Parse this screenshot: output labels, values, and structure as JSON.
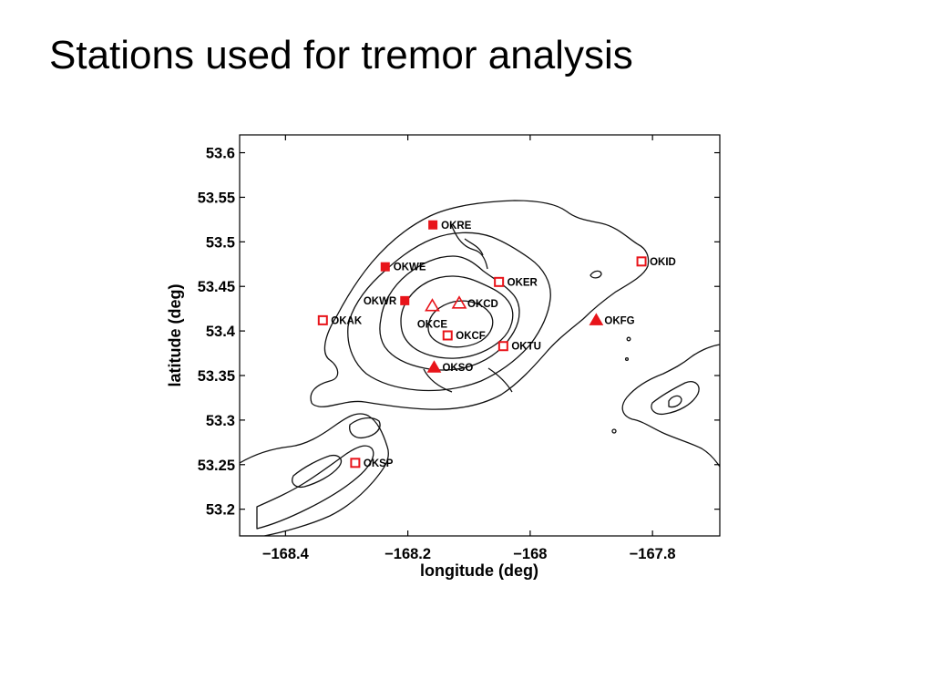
{
  "slide": {
    "title": "Stations used for tremor analysis"
  },
  "map": {
    "xlabel": "longitude (deg)",
    "ylabel": "latitude (deg)",
    "xlim": [
      -168.475,
      -167.69
    ],
    "ylim": [
      53.17,
      53.62
    ],
    "x_ticks": [
      {
        "value": -168.4,
        "label": "−168.4"
      },
      {
        "value": -168.2,
        "label": "−168.2"
      },
      {
        "value": -168.0,
        "label": "−168"
      },
      {
        "value": -167.8,
        "label": "−167.8"
      }
    ],
    "y_ticks": [
      {
        "value": 53.2,
        "label": "53.2"
      },
      {
        "value": 53.25,
        "label": "53.25"
      },
      {
        "value": 53.3,
        "label": "53.3"
      },
      {
        "value": 53.35,
        "label": "53.35"
      },
      {
        "value": 53.4,
        "label": "53.4"
      },
      {
        "value": 53.45,
        "label": "53.45"
      },
      {
        "value": 53.5,
        "label": "53.5"
      },
      {
        "value": 53.55,
        "label": "53.55"
      },
      {
        "value": 53.6,
        "label": "53.6"
      }
    ],
    "marker_color": "#e8141a",
    "stations": [
      {
        "name": "OKRE",
        "lon": -168.159,
        "lat": 53.519,
        "marker": "filled-square",
        "label_side": "right"
      },
      {
        "name": "OKWE",
        "lon": -168.237,
        "lat": 53.472,
        "marker": "filled-square",
        "label_side": "right"
      },
      {
        "name": "OKWR",
        "lon": -168.205,
        "lat": 53.434,
        "marker": "filled-square",
        "label_side": "left"
      },
      {
        "name": "OKCE",
        "lon": -168.16,
        "lat": 53.428,
        "marker": "open-triangle",
        "label_side": "below"
      },
      {
        "name": "OKCD",
        "lon": -168.116,
        "lat": 53.431,
        "marker": "open-triangle",
        "label_side": "right"
      },
      {
        "name": "OKER",
        "lon": -168.051,
        "lat": 53.455,
        "marker": "open-square",
        "label_side": "right"
      },
      {
        "name": "OKAK",
        "lon": -168.339,
        "lat": 53.412,
        "marker": "open-square",
        "label_side": "right"
      },
      {
        "name": "OKCF",
        "lon": -168.135,
        "lat": 53.395,
        "marker": "open-square",
        "label_side": "right"
      },
      {
        "name": "OKTU",
        "lon": -168.044,
        "lat": 53.383,
        "marker": "open-square",
        "label_side": "right"
      },
      {
        "name": "OKFG",
        "lon": -167.892,
        "lat": 53.412,
        "marker": "filled-triangle",
        "label_side": "right"
      },
      {
        "name": "OKID",
        "lon": -167.818,
        "lat": 53.478,
        "marker": "open-square",
        "label_side": "right"
      },
      {
        "name": "OKSO",
        "lon": -168.157,
        "lat": 53.359,
        "marker": "filled-triangle",
        "label_side": "right"
      },
      {
        "name": "OKSP",
        "lon": -168.286,
        "lat": 53.252,
        "marker": "open-square",
        "label_side": "right"
      }
    ]
  }
}
